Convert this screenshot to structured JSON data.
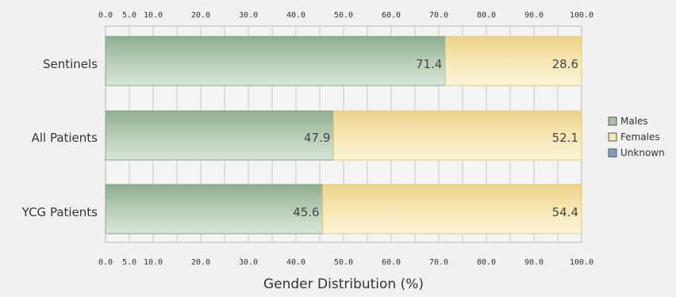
{
  "chart_data": {
    "type": "bar",
    "orientation": "horizontal",
    "stacked": true,
    "title": "",
    "xlabel": "Gender Distribution (%)",
    "ylabel": "",
    "xlim": [
      0,
      100
    ],
    "ticks": [
      "0.0",
      "5.0",
      "10.0",
      "20.0",
      "30.0",
      "40.0",
      "50.0",
      "60.0",
      "70.0",
      "80.0",
      "90.0",
      "100.0"
    ],
    "tick_values": [
      0,
      5,
      10,
      20,
      30,
      40,
      50,
      60,
      70,
      80,
      90,
      100
    ],
    "categories": [
      "Sentinels",
      "All Patients",
      "YCG Patients"
    ],
    "series": [
      {
        "name": "Males",
        "values": [
          71.4,
          47.9,
          45.6
        ],
        "labels": [
          "71.4",
          "47.9",
          "45.6"
        ],
        "color": "#a7c0a6"
      },
      {
        "name": "Females",
        "values": [
          28.6,
          52.1,
          54.4
        ],
        "labels": [
          "28.6",
          "52.1",
          "54.4"
        ],
        "color": "#f6e5ad"
      },
      {
        "name": "Unknown",
        "values": [
          0,
          0,
          0
        ],
        "labels": [
          "",
          "",
          ""
        ],
        "color": "#7c9dc4"
      }
    ],
    "legend": "right",
    "grid": true
  }
}
